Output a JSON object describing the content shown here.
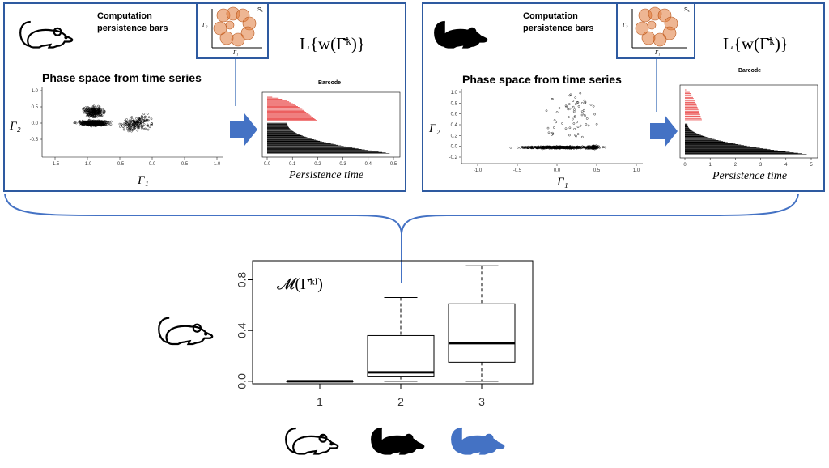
{
  "panels": [
    {
      "computation_title": "Computation persistence bars",
      "inset_label": "S₁",
      "inset_axis_y": "Γ₂",
      "inset_axis_x": "Γ₁",
      "formula": "L{w(Γ̄ᵏ)}",
      "phase_title": "Phase space from time series",
      "phase_ylabel": "Γ₂",
      "phase_xlabel": "Γ₁",
      "phase_xticks": [
        "-1.5",
        "-1.0",
        "-0.5",
        "0.0",
        "0.5",
        "1.0"
      ],
      "phase_yticks": [
        "1.0",
        "0.5",
        "0.0",
        "-0.5"
      ],
      "barcode_title": "Barcode",
      "barcode_xticks": [
        "0.0",
        "0.1",
        "0.2",
        "0.3",
        "0.4",
        "0.5"
      ],
      "barcode_xlabel": "Persistence time"
    },
    {
      "computation_title": "Computation persistence bars",
      "inset_label": "S₁",
      "inset_axis_y": "Γ₂",
      "inset_axis_x": "Γ₁",
      "formula": "L{w(Γ̄ᵏ)}",
      "phase_title": "Phase space from time series",
      "phase_ylabel": "Γ₂",
      "phase_xlabel": "Γ₁",
      "phase_xticks": [
        "-1.0",
        "-0.5",
        "0.0",
        "0.5",
        "1.0"
      ],
      "phase_yticks": [
        "1.0",
        "0.8",
        "0.6",
        "0.4",
        "0.2",
        "0.0",
        "-0.2"
      ],
      "barcode_title": "Barcode",
      "barcode_xticks": [
        "0",
        "1",
        "2",
        "3",
        "4",
        "5"
      ],
      "barcode_xlabel": "Persistence time"
    }
  ],
  "boxplot": {
    "formula": "𝓜(Γ̄ᵏˡ)",
    "yticks": [
      "0.0",
      "0.4",
      "0.8"
    ],
    "xticks": [
      "1",
      "2",
      "3"
    ]
  },
  "chart_data": {
    "type": "box",
    "categories": [
      "1",
      "2",
      "3"
    ],
    "ylim": [
      -0.02,
      0.95
    ],
    "boxes": [
      {
        "category": "1",
        "min": 0.0,
        "q1": 0.0,
        "median": 0.0,
        "q3": 0.0,
        "max": 0.0
      },
      {
        "category": "2",
        "min": 0.0,
        "q1": 0.04,
        "median": 0.07,
        "q3": 0.36,
        "max": 0.66
      },
      {
        "category": "3",
        "min": 0.0,
        "q1": 0.15,
        "median": 0.3,
        "q3": 0.61,
        "max": 0.91
      }
    ]
  },
  "icons": {
    "mouse_outline": "mouse-outline-icon",
    "mouse_black": "mouse-black-icon",
    "mouse_blue": "mouse-blue-icon"
  },
  "colors": {
    "frame": "#2e5aa0",
    "arrow": "#4472c4",
    "blue_mouse": "#4472c4",
    "red_bars": "#e00000"
  }
}
